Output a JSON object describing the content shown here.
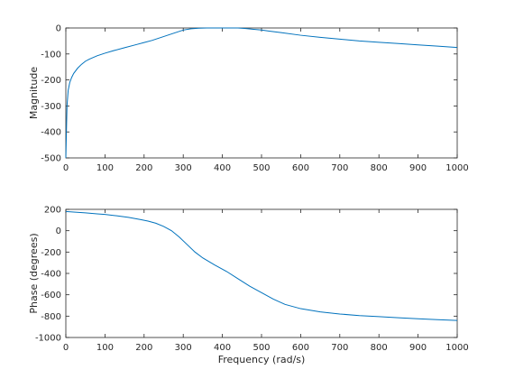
{
  "chart_data": [
    {
      "type": "line",
      "title": "",
      "xlabel": "",
      "ylabel": "Magnitude",
      "xlim": [
        0,
        1000
      ],
      "ylim": [
        -500,
        0
      ],
      "xticks": [
        0,
        100,
        200,
        300,
        400,
        500,
        600,
        700,
        800,
        900,
        1000
      ],
      "yticks": [
        -500,
        -400,
        -300,
        -200,
        -100,
        0
      ],
      "grid": false,
      "series": [
        {
          "color": "#0072bd",
          "x": [
            0,
            3,
            6,
            10,
            15,
            20,
            30,
            40,
            50,
            60,
            80,
            100,
            120,
            150,
            180,
            200,
            220,
            240,
            260,
            280,
            300,
            320,
            340,
            360,
            380,
            400,
            420,
            440,
            460,
            480,
            500,
            520,
            550,
            600,
            650,
            700,
            750,
            800,
            850,
            900,
            950,
            1000
          ],
          "y": [
            -500,
            -300,
            -240,
            -210,
            -190,
            -175,
            -155,
            -140,
            -128,
            -120,
            -107,
            -97,
            -88,
            -76,
            -64,
            -56,
            -48,
            -38,
            -28,
            -18,
            -8,
            -3,
            -1,
            0,
            0,
            0,
            0,
            0,
            -2,
            -5,
            -8,
            -12,
            -18,
            -28,
            -36,
            -43,
            -50,
            -55,
            -60,
            -65,
            -70,
            -75
          ]
        }
      ]
    },
    {
      "type": "line",
      "title": "",
      "xlabel": "Frequency (rad/s)",
      "ylabel": "Phase (degrees)",
      "xlim": [
        0,
        1000
      ],
      "ylim": [
        -1000,
        200
      ],
      "xticks": [
        0,
        100,
        200,
        300,
        400,
        500,
        600,
        700,
        800,
        900,
        1000
      ],
      "yticks": [
        -1000,
        -800,
        -600,
        -400,
        -200,
        0,
        200
      ],
      "grid": false,
      "series": [
        {
          "color": "#0072bd",
          "x": [
            0,
            20,
            50,
            80,
            100,
            130,
            160,
            190,
            210,
            230,
            250,
            270,
            290,
            310,
            330,
            350,
            380,
            410,
            440,
            470,
            500,
            530,
            560,
            600,
            650,
            700,
            750,
            800,
            850,
            900,
            950,
            1000
          ],
          "y": [
            180,
            175,
            167,
            158,
            152,
            140,
            125,
            105,
            90,
            70,
            40,
            0,
            -60,
            -130,
            -200,
            -255,
            -320,
            -380,
            -450,
            -520,
            -580,
            -640,
            -690,
            -730,
            -760,
            -780,
            -795,
            -805,
            -815,
            -825,
            -833,
            -840
          ]
        }
      ]
    }
  ]
}
